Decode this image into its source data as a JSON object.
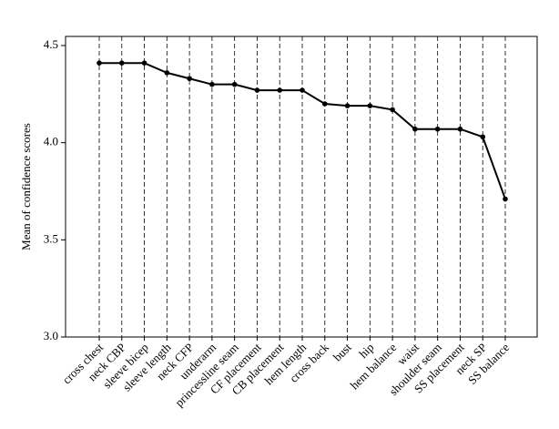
{
  "chart_data": {
    "type": "line",
    "y_label": "Mean of confidence scores",
    "categories": [
      "cross chest",
      "neck CBP",
      "sleeve bicep",
      "sleeve length",
      "neck CFP",
      "underarm",
      "princessline seam",
      "CF placement",
      "CB placement",
      "hem length",
      "cross back",
      "bust",
      "hip",
      "hem balance",
      "waist",
      "shoulder seam",
      "SS placement",
      "neck SP",
      "SS balance"
    ],
    "values": [
      4.41,
      4.41,
      4.41,
      4.36,
      4.33,
      4.3,
      4.3,
      4.27,
      4.27,
      4.27,
      4.2,
      4.19,
      4.19,
      4.17,
      4.07,
      4.07,
      4.07,
      4.03,
      3.71
    ],
    "color": "#000000",
    "ylim": [
      3.0,
      4.5
    ],
    "yticks": [
      {
        "value": 3,
        "label": "3.0"
      },
      3.5,
      {
        "value": 4,
        "label": "4.0"
      },
      4.5
    ],
    "grid": true
  }
}
